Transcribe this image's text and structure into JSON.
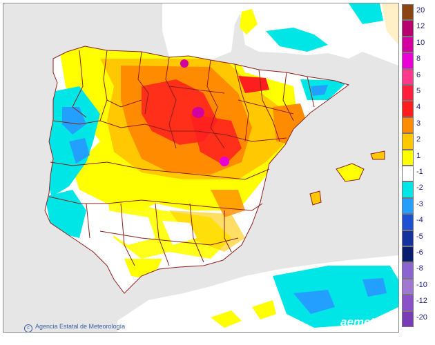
{
  "credit": "Agencia Estatal de Meteorología",
  "logo": "aemet",
  "legend": [
    {
      "label": "20",
      "color": "#8b4513"
    },
    {
      "label": "12",
      "color": "#b5006e"
    },
    {
      "label": "10",
      "color": "#d1009e"
    },
    {
      "label": "8",
      "color": "#e800d5"
    },
    {
      "label": "6",
      "color": "#ff3a8c"
    },
    {
      "label": "5",
      "color": "#ff1e3c"
    },
    {
      "label": "4",
      "color": "#ff1e1e"
    },
    {
      "label": "3",
      "color": "#ff8c00"
    },
    {
      "label": "2",
      "color": "#ffc800"
    },
    {
      "label": "1",
      "color": "#ffff00"
    },
    {
      "label": "-1",
      "color": "#ffffff"
    },
    {
      "label": "-2",
      "color": "#00e5e5"
    },
    {
      "label": "-3",
      "color": "#23a0ff"
    },
    {
      "label": "-4",
      "color": "#1e50d2"
    },
    {
      "label": "-5",
      "color": "#1432a0"
    },
    {
      "label": "-6",
      "color": "#0a1e6e"
    },
    {
      "label": "-8",
      "color": "#8c64d2"
    },
    {
      "label": "-10",
      "color": "#a078d2"
    },
    {
      "label": "-12",
      "color": "#8c50c8"
    },
    {
      "label": "-20",
      "color": "#7a3cb4"
    }
  ],
  "colors": {
    "land": "#ffffff",
    "sea": "#e6e6e6",
    "border": "#8b1e1e",
    "africa": "#fff0c8"
  }
}
